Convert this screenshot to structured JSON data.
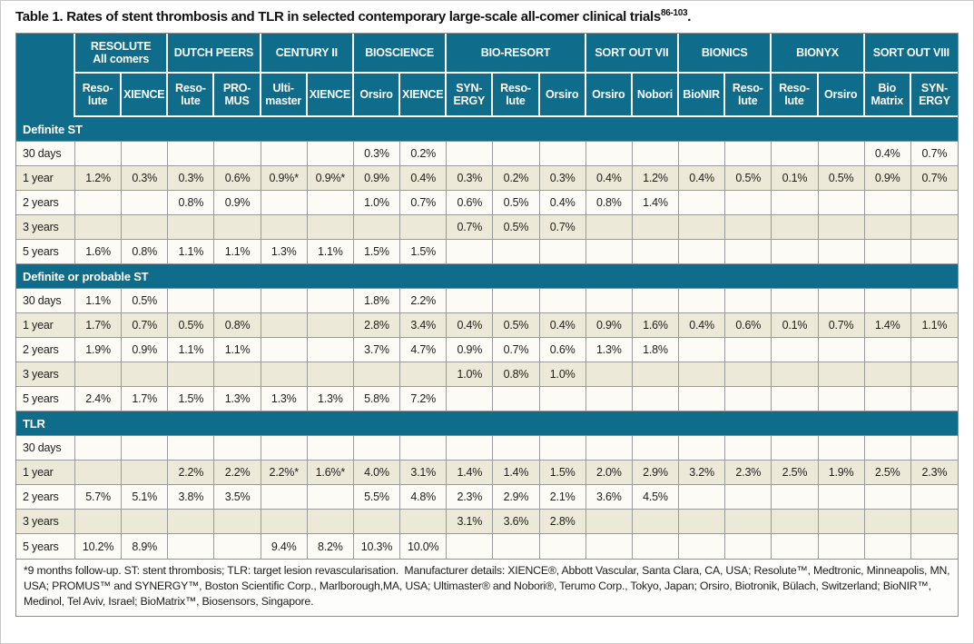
{
  "title": {
    "text": "Table 1. Rates of stent thrombosis and TLR in selected contemporary large-scale all-comer clinical trials",
    "reference_superscript": "86-103",
    "suffix": "."
  },
  "colors": {
    "header_teal": "#0f6c8b",
    "row_beige": "#ede9d8",
    "row_white": "#fcfbf6",
    "grid_border": "#8f8f8f",
    "header_text": "#ffffff",
    "body_text": "#1d1d1d"
  },
  "table": {
    "corner_label": "",
    "trial_groups": [
      {
        "name": "RESOLUTE\nAll comers",
        "stents": [
          "Reso-\nlute",
          "XIENCE"
        ]
      },
      {
        "name": "DUTCH PEERS",
        "stents": [
          "Reso-\nlute",
          "PRO-\nMUS"
        ]
      },
      {
        "name": "CENTURY II",
        "stents": [
          "Ulti-\nmaster",
          "XIENCE"
        ]
      },
      {
        "name": "BIOSCIENCE",
        "stents": [
          "Orsiro",
          "XIENCE"
        ]
      },
      {
        "name": "BIO-RESORT",
        "stents": [
          "SYN-\nERGY",
          "Reso-\nlute",
          "Orsiro"
        ]
      },
      {
        "name": "SORT OUT VII",
        "stents": [
          "Orsiro",
          "Nobori"
        ]
      },
      {
        "name": "BIONICS",
        "stents": [
          "BioNIR",
          "Reso-\nlute"
        ]
      },
      {
        "name": "BIONYX",
        "stents": [
          "Reso-\nlute",
          "Orsiro"
        ]
      },
      {
        "name": "SORT OUT VIII",
        "stents": [
          "Bio\nMatrix",
          "SYN-\nERGY"
        ]
      }
    ],
    "sections": [
      {
        "label": "Definite ST",
        "rows": [
          {
            "label": "30 days",
            "values": [
              "",
              "",
              "",
              "",
              "",
              "",
              "0.3%",
              "0.2%",
              "",
              "",
              "",
              "",
              "",
              "",
              "",
              "",
              "",
              "0.4%",
              "0.7%"
            ]
          },
          {
            "label": "1 year",
            "values": [
              "1.2%",
              "0.3%",
              "0.3%",
              "0.6%",
              "0.9%*",
              "0.9%*",
              "0.9%",
              "0.4%",
              "0.3%",
              "0.2%",
              "0.3%",
              "0.4%",
              "1.2%",
              "0.4%",
              "0.5%",
              "0.1%",
              "0.5%",
              "0.9%",
              "0.7%"
            ]
          },
          {
            "label": "2 years",
            "values": [
              "",
              "",
              "0.8%",
              "0.9%",
              "",
              "",
              "1.0%",
              "0.7%",
              "0.6%",
              "0.5%",
              "0.4%",
              "0.8%",
              "1.4%",
              "",
              "",
              "",
              "",
              "",
              ""
            ]
          },
          {
            "label": "3 years",
            "values": [
              "",
              "",
              "",
              "",
              "",
              "",
              "",
              "",
              "0.7%",
              "0.5%",
              "0.7%",
              "",
              "",
              "",
              "",
              "",
              "",
              "",
              ""
            ]
          },
          {
            "label": "5 years",
            "values": [
              "1.6%",
              "0.8%",
              "1.1%",
              "1.1%",
              "1.3%",
              "1.1%",
              "1.5%",
              "1.5%",
              "",
              "",
              "",
              "",
              "",
              "",
              "",
              "",
              "",
              "",
              ""
            ]
          }
        ]
      },
      {
        "label": "Definite or probable ST",
        "rows": [
          {
            "label": "30 days",
            "values": [
              "1.1%",
              "0.5%",
              "",
              "",
              "",
              "",
              "1.8%",
              "2.2%",
              "",
              "",
              "",
              "",
              "",
              "",
              "",
              "",
              "",
              "",
              ""
            ]
          },
          {
            "label": "1 year",
            "values": [
              "1.7%",
              "0.7%",
              "0.5%",
              "0.8%",
              "",
              "",
              "2.8%",
              "3.4%",
              "0.4%",
              "0.5%",
              "0.4%",
              "0.9%",
              "1.6%",
              "0.4%",
              "0.6%",
              "0.1%",
              "0.7%",
              "1.4%",
              "1.1%"
            ]
          },
          {
            "label": "2 years",
            "values": [
              "1.9%",
              "0.9%",
              "1.1%",
              "1.1%",
              "",
              "",
              "3.7%",
              "4.7%",
              "0.9%",
              "0.7%",
              "0.6%",
              "1.3%",
              "1.8%",
              "",
              "",
              "",
              "",
              "",
              ""
            ]
          },
          {
            "label": "3 years",
            "values": [
              "",
              "",
              "",
              "",
              "",
              "",
              "",
              "",
              "1.0%",
              "0.8%",
              "1.0%",
              "",
              "",
              "",
              "",
              "",
              "",
              "",
              ""
            ]
          },
          {
            "label": "5 years",
            "values": [
              "2.4%",
              "1.7%",
              "1.5%",
              "1.3%",
              "1.3%",
              "1.3%",
              "5.8%",
              "7.2%",
              "",
              "",
              "",
              "",
              "",
              "",
              "",
              "",
              "",
              "",
              ""
            ]
          }
        ]
      },
      {
        "label": "TLR",
        "rows": [
          {
            "label": "30 days",
            "values": [
              "",
              "",
              "",
              "",
              "",
              "",
              "",
              "",
              "",
              "",
              "",
              "",
              "",
              "",
              "",
              "",
              "",
              "",
              ""
            ]
          },
          {
            "label": "1 year",
            "values": [
              "",
              "",
              "2.2%",
              "2.2%",
              "2.2%*",
              "1.6%*",
              "4.0%",
              "3.1%",
              "1.4%",
              "1.4%",
              "1.5%",
              "2.0%",
              "2.9%",
              "3.2%",
              "2.3%",
              "2.5%",
              "1.9%",
              "2.5%",
              "2.3%"
            ]
          },
          {
            "label": "2 years",
            "values": [
              "5.7%",
              "5.1%",
              "3.8%",
              "3.5%",
              "",
              "",
              "5.5%",
              "4.8%",
              "2.3%",
              "2.9%",
              "2.1%",
              "3.6%",
              "4.5%",
              "",
              "",
              "",
              "",
              "",
              ""
            ]
          },
          {
            "label": "3 years",
            "values": [
              "",
              "",
              "",
              "",
              "",
              "",
              "",
              "",
              "3.1%",
              "3.6%",
              "2.8%",
              "",
              "",
              "",
              "",
              "",
              "",
              "",
              ""
            ]
          },
          {
            "label": "5 years",
            "values": [
              "10.2%",
              "8.9%",
              "",
              "",
              "9.4%",
              "8.2%",
              "10.3%",
              "10.0%",
              "",
              "",
              "",
              "",
              "",
              "",
              "",
              "",
              "",
              "",
              ""
            ]
          }
        ]
      }
    ]
  },
  "footnote": "*9 months follow-up. ST: stent thrombosis; TLR: target lesion revascularisation.  Manufacturer details: XIENCE®, Abbott Vascular, Santa Clara, CA, USA; Resolute™, Medtronic, Minneapolis, MN, USA; PROMUS™ and SYNERGY™, Boston Scientific Corp., Marlborough,MA, USA; Ultimaster® and Nobori®, Terumo Corp., Tokyo, Japan; Orsiro, Biotronik, Bülach, Switzerland; BioNIR™, Medinol, Tel Aviv, Israel; BioMatrix™, Biosensors, Singapore."
}
